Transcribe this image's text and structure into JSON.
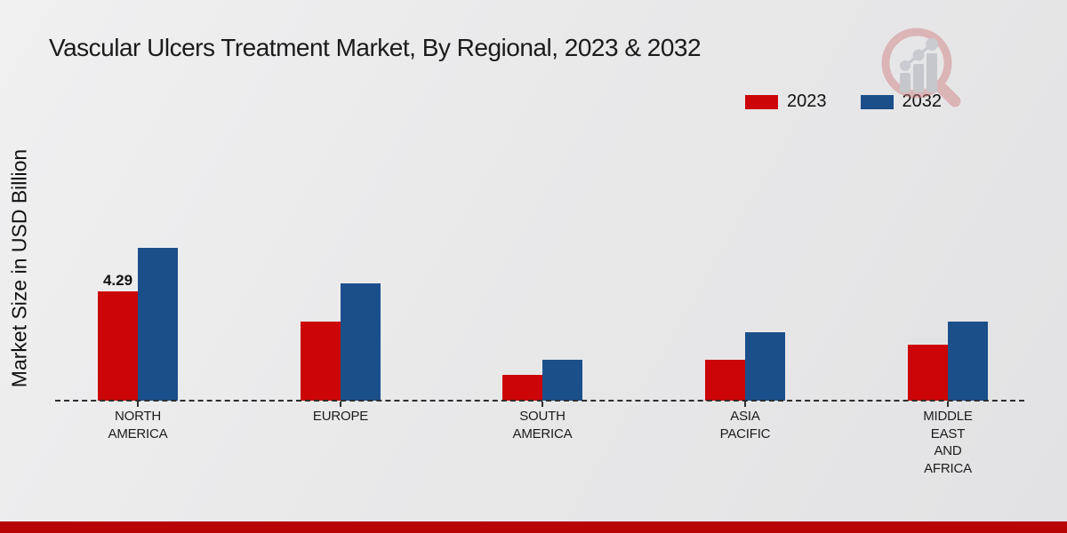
{
  "page": {
    "background_top_color": "#f0f0f1",
    "background_bottom_color": "#e2e2e4",
    "bottom_band_color": "#b80404"
  },
  "icons": {
    "watermark": "bar-chart-magnifier-logo"
  },
  "chart": {
    "title": "Vascular Ulcers Treatment Market, By Regional, 2023 & 2032",
    "y_axis_label": "Market Size in USD Billion"
  },
  "chart_data": {
    "type": "bar",
    "title": "Vascular Ulcers Treatment Market, By Regional, 2023 & 2032",
    "xlabel": "",
    "ylabel": "Market Size in USD Billion",
    "categories": [
      "NORTH AMERICA",
      "EUROPE",
      "SOUTH AMERICA",
      "ASIA PACIFIC",
      "MIDDLE EAST AND AFRICA"
    ],
    "series": [
      {
        "name": "2023",
        "color": "#cc0606",
        "values": [
          4.29,
          3.1,
          1.0,
          1.6,
          2.2
        ]
      },
      {
        "name": "2032",
        "color": "#1b4f8a",
        "values": [
          6.0,
          4.6,
          1.6,
          2.7,
          3.1
        ]
      }
    ],
    "data_labels": [
      {
        "series": "2023",
        "category": "NORTH AMERICA",
        "text": "4.29"
      }
    ],
    "baseline_style": "dashed",
    "legend_position": "top-right",
    "grid": false,
    "ylim": [
      0,
      7
    ]
  }
}
